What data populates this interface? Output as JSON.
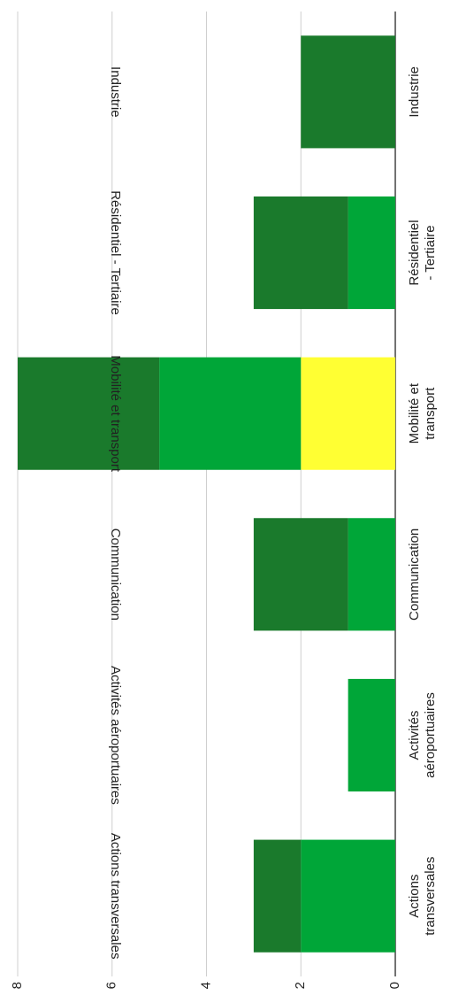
{
  "chart_data": {
    "type": "stacked_bar",
    "categories": [
      "Actions transversales",
      "Activités aéroportuaires",
      "Communication",
      "Mobilité et transport",
      "Résidentiel - Tertiaire",
      "Industrie"
    ],
    "series": [
      {
        "color": "#ffff33",
        "values": [
          0,
          0,
          0,
          2,
          0,
          0
        ]
      },
      {
        "color": "#00a638",
        "values": [
          2,
          1,
          1,
          3,
          1,
          0
        ]
      },
      {
        "color": "#1a7a2c",
        "values": [
          1,
          0,
          2,
          3,
          2,
          2
        ]
      }
    ],
    "ylim": [
      0,
      8
    ],
    "yticks": [
      0,
      2,
      4,
      6,
      8
    ],
    "grid": true
  }
}
